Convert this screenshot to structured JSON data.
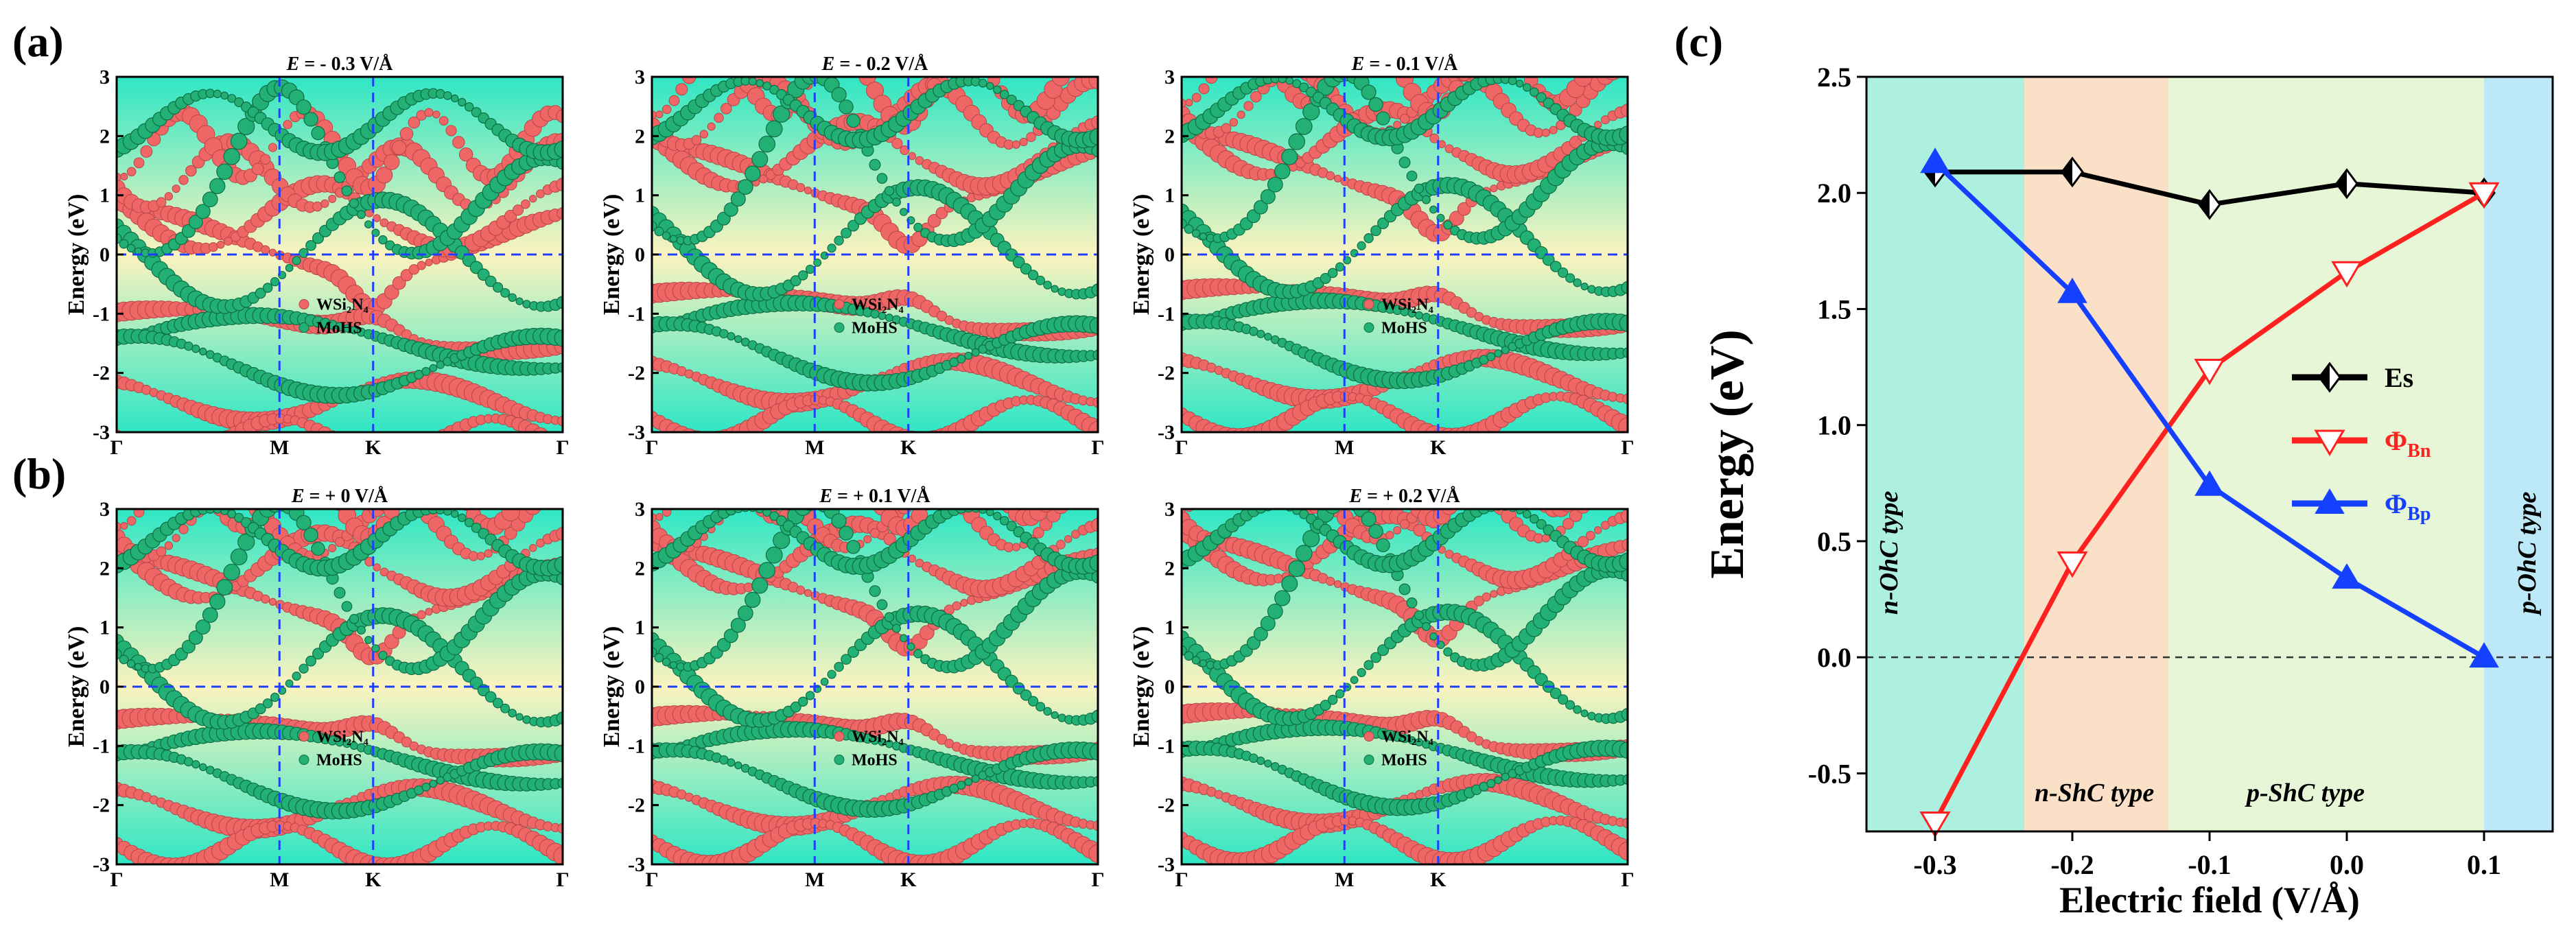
{
  "panel_labels": {
    "a": "(a)",
    "b": "(b)",
    "c": "(c)"
  },
  "colors": {
    "wsi2n4": "#ee6666",
    "mohs": "#22b074",
    "es_line": "#000000",
    "phi_bn_line": "#ff2020",
    "phi_bp_line": "#1540ff",
    "region_n_ohc": "#aef0e0",
    "region_n_shc": "#fbe0c8",
    "region_p_shc": "#e6f6d6",
    "region_p_ohc": "#bde8f8"
  },
  "band_common": {
    "ylabel": "Energy (eV)",
    "yticks": [
      "3",
      "2",
      "1",
      "0",
      "-1",
      "-2",
      "-3"
    ],
    "kpoints": [
      "Γ",
      "M",
      "K",
      "Γ"
    ],
    "legend": [
      "WSi₂N₄",
      "MoHS"
    ]
  },
  "chart_data": [
    {
      "type": "scatter",
      "panel": "a",
      "title_var": "E",
      "title_value": " = - 0.3 V/Å",
      "ylim": [
        -3,
        3
      ],
      "xlabels": [
        "Γ",
        "M",
        "K",
        "Γ"
      ],
      "series": [
        {
          "name": "WSi₂N₄"
        },
        {
          "name": "MoHS"
        }
      ]
    },
    {
      "type": "scatter",
      "panel": "a",
      "title_var": "E",
      "title_value": " = - 0.2 V/Å",
      "ylim": [
        -3,
        3
      ],
      "xlabels": [
        "Γ",
        "M",
        "K",
        "Γ"
      ],
      "series": [
        {
          "name": "WSi₂N₄"
        },
        {
          "name": "MoHS"
        }
      ]
    },
    {
      "type": "scatter",
      "panel": "a",
      "title_var": "E",
      "title_value": " = - 0.1 V/Å",
      "ylim": [
        -3,
        3
      ],
      "xlabels": [
        "Γ",
        "M",
        "K",
        "Γ"
      ],
      "series": [
        {
          "name": "WSi₂N₄"
        },
        {
          "name": "MoHS"
        }
      ]
    },
    {
      "type": "scatter",
      "panel": "b",
      "title_var": "E",
      "title_value": " = + 0 V/Å",
      "ylim": [
        -3,
        3
      ],
      "xlabels": [
        "Γ",
        "M",
        "K",
        "Γ"
      ],
      "series": [
        {
          "name": "WSi₂N₄"
        },
        {
          "name": "MoHS"
        }
      ]
    },
    {
      "type": "scatter",
      "panel": "b",
      "title_var": "E",
      "title_value": " = + 0.1 V/Å",
      "ylim": [
        -3,
        3
      ],
      "xlabels": [
        "Γ",
        "M",
        "K",
        "Γ"
      ],
      "series": [
        {
          "name": "WSi₂N₄"
        },
        {
          "name": "MoHS"
        }
      ]
    },
    {
      "type": "scatter",
      "panel": "b",
      "title_var": "E",
      "title_value": " = + 0.2 V/Å",
      "ylim": [
        -3,
        3
      ],
      "xlabels": [
        "Γ",
        "M",
        "K",
        "Γ"
      ],
      "series": [
        {
          "name": "WSi₂N₄"
        },
        {
          "name": "MoHS"
        }
      ]
    },
    {
      "type": "line",
      "panel": "c",
      "xlabel": "Electric field (V/Å)",
      "ylabel": "Energy (eV)",
      "xlim": [
        -0.35,
        0.15
      ],
      "ylim": [
        -0.75,
        2.5
      ],
      "xticks": [
        "-0.3",
        "-0.2",
        "-0.1",
        "0.0",
        "0.1"
      ],
      "yticks": [
        "2.5",
        "2.0",
        "1.5",
        "1.0",
        "0.5",
        "0.0",
        "-0.5"
      ],
      "x": [
        -0.3,
        -0.2,
        -0.1,
        0.0,
        0.1
      ],
      "series": [
        {
          "name": "Es",
          "label": "Es",
          "sub": "",
          "values": [
            2.09,
            2.09,
            1.95,
            2.04,
            2.0
          ]
        },
        {
          "name": "ΦBn",
          "label": "Φ",
          "sub": "Bn",
          "values": [
            -0.71,
            0.41,
            1.24,
            1.66,
            2.0
          ]
        },
        {
          "name": "ΦBp",
          "label": "Φ",
          "sub": "Bp",
          "values": [
            2.13,
            1.57,
            0.74,
            0.34,
            0.0
          ]
        }
      ],
      "regions": [
        {
          "label": "n-OhC type",
          "from": -0.35,
          "to": -0.235
        },
        {
          "label": "n-ShC type",
          "from": -0.235,
          "to": -0.13
        },
        {
          "label": "p-ShC type",
          "from": -0.13,
          "to": 0.1
        },
        {
          "label": "p-OhC type",
          "from": 0.1,
          "to": 0.15
        }
      ],
      "reference_line": 0.0
    }
  ]
}
